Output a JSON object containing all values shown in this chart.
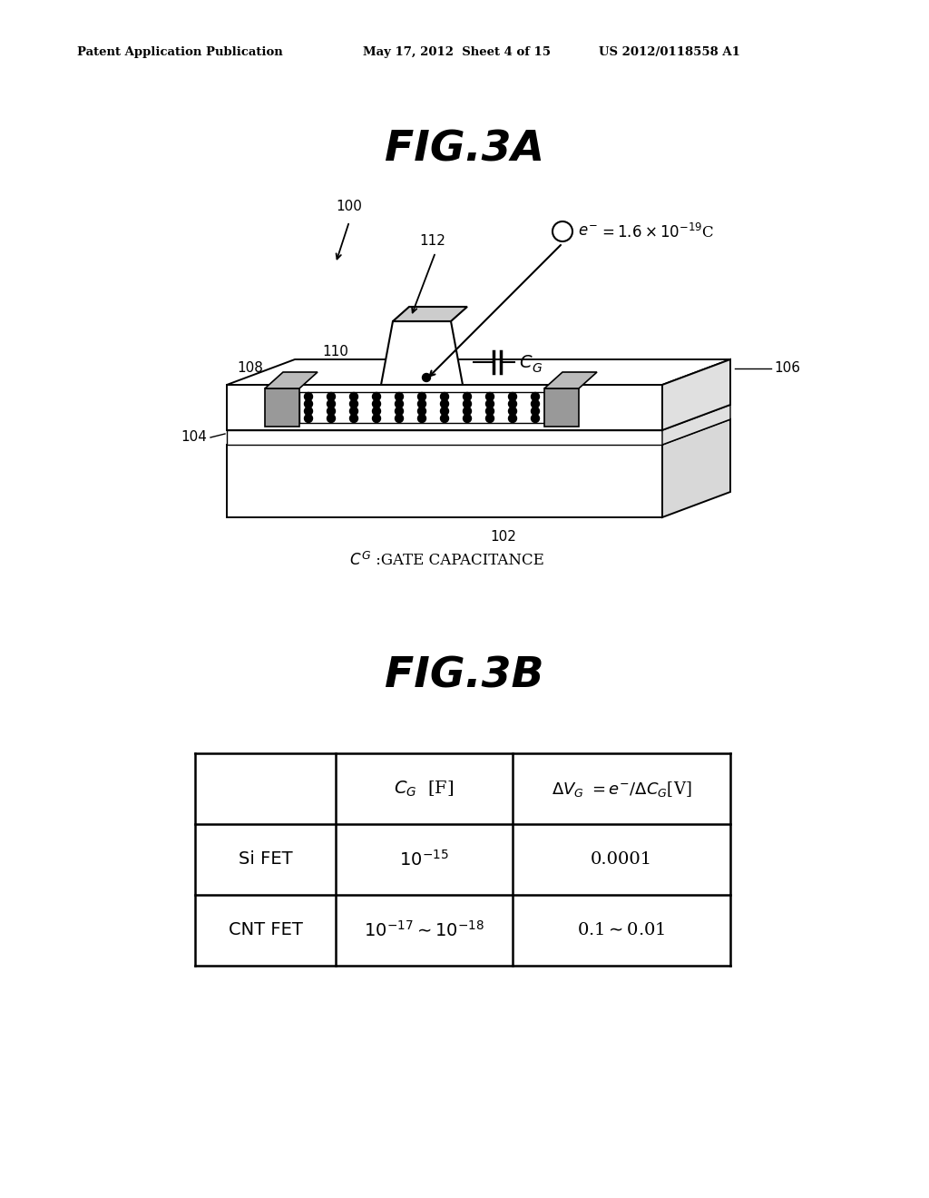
{
  "background_color": "#ffffff",
  "header_left": "Patent Application Publication",
  "header_mid": "May 17, 2012  Sheet 4 of 15",
  "header_right": "US 2012/0118558 A1",
  "fig3a_title": "FIG.3A",
  "fig3b_title": "FIG.3B",
  "label_100": "100",
  "label_102": "102",
  "label_104": "104",
  "label_106": "106",
  "label_108": "108",
  "label_110": "110",
  "label_112": "112"
}
